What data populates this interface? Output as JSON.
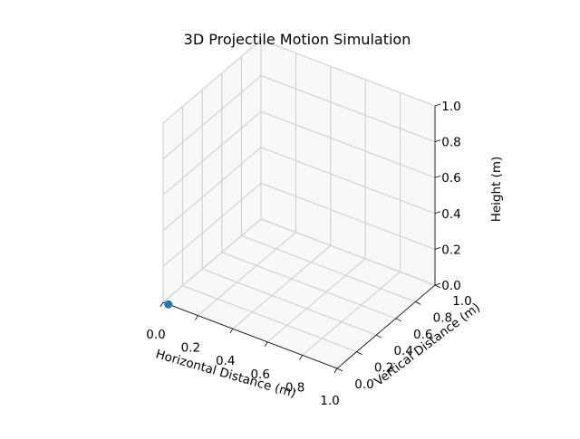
{
  "chart_data": {
    "type": "scatter",
    "projection": "3d",
    "title": "3D Projectile Motion Simulation",
    "xlabel": "Horizontal Distance (m)",
    "ylabel": "Vertical Distance (m)",
    "zlabel": "Height (m)",
    "xlim": [
      0,
      1
    ],
    "ylim": [
      0,
      1
    ],
    "zlim": [
      0,
      1
    ],
    "grid": true,
    "ticks": {
      "x": [
        "0.0",
        "0.2",
        "0.4",
        "0.6",
        "0.8",
        "1.0"
      ],
      "y": [
        "0.0",
        "0.2",
        "0.4",
        "0.6",
        "0.8",
        "1.0"
      ],
      "z": [
        "0.0",
        "0.2",
        "0.4",
        "0.6",
        "0.8",
        "1.0"
      ]
    },
    "points": [
      {
        "x": 0.03,
        "y": 0.0,
        "z": 0.0
      }
    ],
    "colors": {
      "point": "#1f77b4",
      "pane": "#f2f2f2",
      "grid": "#cccccc",
      "spine": "#000000"
    }
  }
}
